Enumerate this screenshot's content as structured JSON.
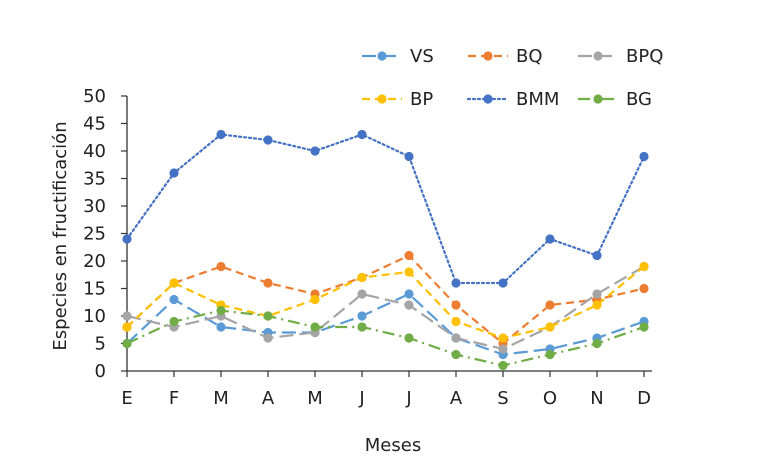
{
  "chart_data": {
    "type": "line",
    "title": "",
    "xlabel": "Meses",
    "ylabel": "Especies en fructificación",
    "ylim": [
      0,
      50
    ],
    "ytick_step": 5,
    "grid": false,
    "legend_position": "top-right",
    "categories": [
      "E",
      "F",
      "M",
      "A",
      "M",
      "J",
      "J",
      "A",
      "S",
      "O",
      "N",
      "D"
    ],
    "series": [
      {
        "name": "VS",
        "color": "#5B9BD5",
        "dash": "long-dash",
        "values": [
          5,
          13,
          8,
          7,
          7,
          10,
          14,
          6,
          3,
          4,
          6,
          9
        ]
      },
      {
        "name": "BQ",
        "color": "#ED7D31",
        "dash": "dash",
        "values": [
          8,
          16,
          19,
          16,
          14,
          17,
          21,
          12,
          5,
          12,
          13,
          15
        ]
      },
      {
        "name": "BPQ",
        "color": "#A5A5A5",
        "dash": "long-dash",
        "values": [
          10,
          8,
          10,
          6,
          7,
          14,
          12,
          6,
          4,
          8,
          14,
          19
        ]
      },
      {
        "name": "BP",
        "color": "#FFC000",
        "dash": "dash",
        "values": [
          8,
          16,
          12,
          10,
          13,
          17,
          18,
          9,
          6,
          8,
          12,
          19
        ]
      },
      {
        "name": "BMM",
        "color": "#4472C4",
        "dash": "dot",
        "values": [
          24,
          36,
          43,
          42,
          40,
          43,
          39,
          16,
          16,
          24,
          21,
          39
        ]
      },
      {
        "name": "BG",
        "color": "#70AD47",
        "dash": "dash-dot",
        "values": [
          5,
          9,
          11,
          10,
          8,
          8,
          6,
          3,
          1,
          3,
          5,
          8
        ]
      }
    ]
  }
}
